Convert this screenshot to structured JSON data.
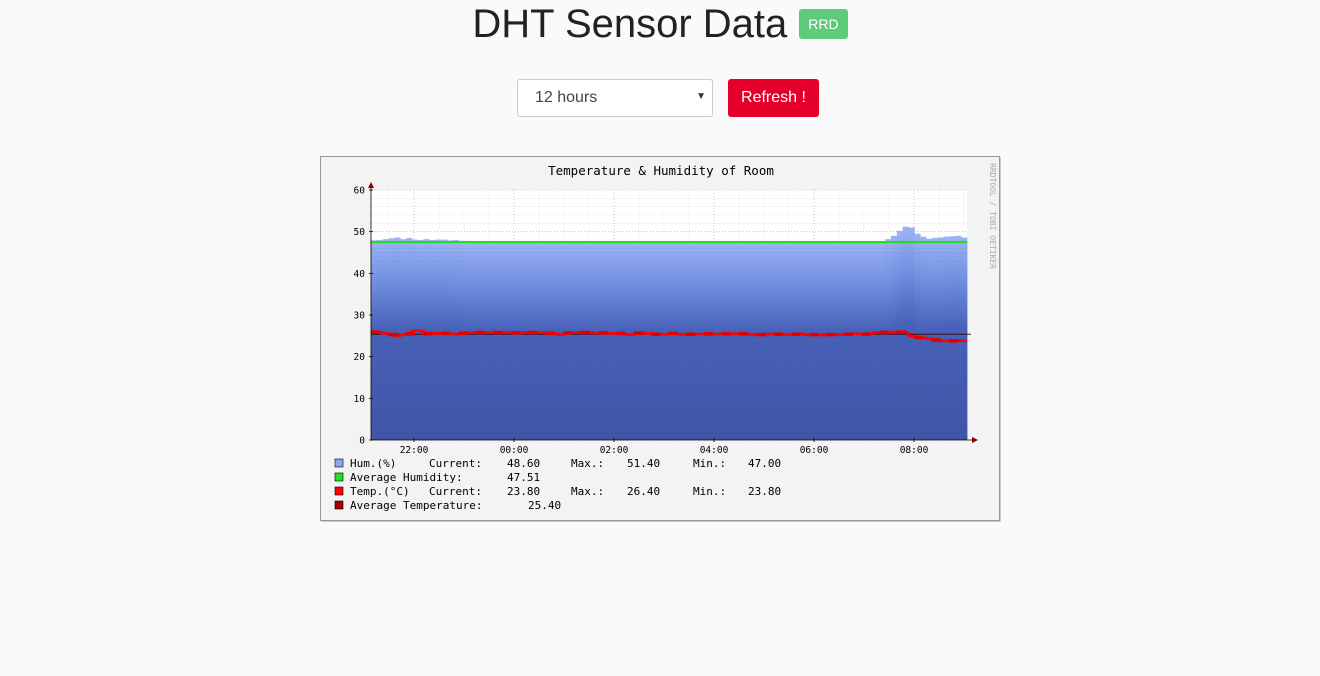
{
  "header": {
    "title": "DHT Sensor Data",
    "badge": "RRD"
  },
  "controls": {
    "range_selected": "12 hours",
    "refresh_label": "Refresh !"
  },
  "chart_data": {
    "type": "area",
    "title": "Temperature & Humidity of Room",
    "watermark": "RRDTOOL / TOBI OETIKER",
    "ylim": [
      0,
      60
    ],
    "yticks": [
      "0",
      "10",
      "20",
      "30",
      "40",
      "50",
      "60"
    ],
    "xticks": [
      "22:00",
      "00:00",
      "02:00",
      "04:00",
      "06:00",
      "08:00"
    ],
    "grid": true,
    "series": [
      {
        "name": "Hum.(%)",
        "kind": "area",
        "color": "#8fa8ec",
        "values": [
          47.9,
          48.0,
          48.2,
          48.4,
          48.6,
          48.2,
          48.5,
          48.1,
          48.0,
          48.2,
          48.0,
          48.1,
          48.1,
          47.9,
          48.0,
          47.8,
          47.5,
          47.5,
          47.5,
          47.5,
          47.5,
          47.5,
          47.5,
          47.5,
          47.5,
          47.5,
          47.5,
          47.5,
          47.5,
          47.5,
          47.5,
          47.5,
          47.5,
          47.5,
          47.5,
          47.5,
          47.5,
          47.5,
          47.5,
          47.5,
          47.5,
          47.5,
          47.5,
          47.5,
          47.5,
          47.5,
          47.5,
          47.5,
          47.5,
          47.5,
          47.5,
          47.5,
          47.5,
          47.5,
          47.5,
          47.5,
          47.5,
          47.5,
          47.5,
          47.5,
          47.5,
          47.5,
          47.5,
          47.5,
          47.5,
          47.5,
          47.5,
          47.5,
          47.5,
          47.5,
          47.5,
          47.5,
          47.5,
          47.5,
          47.5,
          47.5,
          47.5,
          47.5,
          47.5,
          47.5,
          47.5,
          47.5,
          47.5,
          47.5,
          47.5,
          47.5,
          47.5,
          47.5,
          48.2,
          49.0,
          50.2,
          51.2,
          51.0,
          49.5,
          48.8,
          48.3,
          48.5,
          48.6,
          48.8,
          48.9,
          49.0,
          48.6
        ]
      },
      {
        "name": "Temp.(°C)",
        "kind": "line",
        "color": "#ff0000",
        "values": [
          25.9,
          25.8,
          25.6,
          25.3,
          25.0,
          25.3,
          25.5,
          26.2,
          26.2,
          25.5,
          25.5,
          25.6,
          25.6,
          25.5,
          25.4,
          25.6,
          25.8,
          25.8,
          25.8,
          25.8,
          25.8,
          25.8,
          25.8,
          25.8,
          25.7,
          25.7,
          25.8,
          25.8,
          25.8,
          25.8,
          25.6,
          25.5,
          25.3,
          25.7,
          25.8,
          25.8,
          25.8,
          25.8,
          25.7,
          25.7,
          25.6,
          25.6,
          25.6,
          25.4,
          25.3,
          25.6,
          25.8,
          25.6,
          25.4,
          25.4,
          25.4,
          25.6,
          25.4,
          25.3,
          25.4,
          25.4,
          25.4,
          25.5,
          25.4,
          25.4,
          25.5,
          25.4,
          25.5,
          25.5,
          25.4,
          25.3,
          25.3,
          25.4,
          25.4,
          25.4,
          25.3,
          25.3,
          25.4,
          25.5,
          25.3,
          25.3,
          25.2,
          25.2,
          25.3,
          25.3,
          25.3,
          25.4,
          25.5,
          25.5,
          25.4,
          25.5,
          25.8,
          25.8,
          25.9,
          25.9,
          25.9,
          25.8,
          25.0,
          24.6,
          24.5,
          24.3,
          24.0,
          23.8,
          23.8,
          23.8,
          23.9,
          23.8
        ]
      }
    ],
    "averages": {
      "humidity": 47.51,
      "temperature": 25.4
    },
    "legend": [
      {
        "label": "Hum.(%)",
        "color": "#8fa8ec",
        "current_label": "Current:",
        "current": "48.60",
        "max_label": "Max.:",
        "max": "51.40",
        "min_label": "Min.:",
        "min": "47.00"
      },
      {
        "label": "Average Humidity:",
        "color": "#22dd22",
        "value": "47.51"
      },
      {
        "label": "Temp.(°C)",
        "color": "#ff0000",
        "current_label": "Current:",
        "current": "23.80",
        "max_label": "Max.:",
        "max": "26.40",
        "min_label": "Min.:",
        "min": "23.80"
      },
      {
        "label": "Average Temperature:",
        "color": "#a00000",
        "value": "25.40"
      }
    ]
  }
}
